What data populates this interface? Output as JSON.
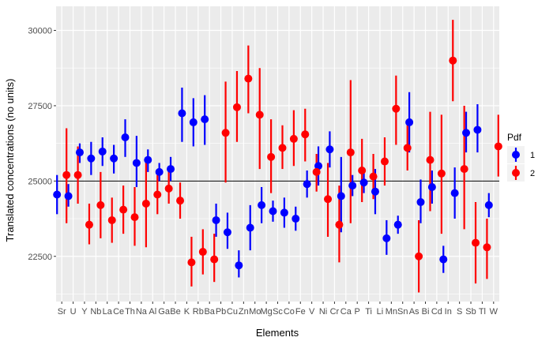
{
  "chart_data": {
    "type": "scatter",
    "xlabel": "Elements",
    "ylabel": "Translated concentrations (no units)",
    "ylim": [
      21000,
      30800
    ],
    "yticks": [
      22500,
      25000,
      27500,
      30000
    ],
    "reference_line": 25000,
    "grid": true,
    "legend_placement": "right",
    "legend_title": "Pdf",
    "categories": [
      "Sr",
      "U",
      "Y",
      "Nb",
      "La",
      "Ce",
      "Th",
      "Na",
      "Al",
      "Ga",
      "Be",
      "K",
      "Rb",
      "Ba",
      "Pb",
      "Cu",
      "Zn",
      "Mo",
      "Mg",
      "Sc",
      "Co",
      "Fe",
      "V",
      "Ni",
      "Cr",
      "Ca",
      "P",
      "Ti",
      "Li",
      "Mn",
      "Sn",
      "As",
      "Bi",
      "Cd",
      "In",
      "S",
      "Sb",
      "Tl",
      "W"
    ],
    "series": [
      {
        "name": "1",
        "color": "#0000ff",
        "points": [
          {
            "x": "Sr",
            "y": 24550,
            "low": 23900,
            "high": 25200
          },
          {
            "x": "U",
            "y": 24500,
            "low": 24150,
            "high": 24900
          },
          {
            "x": "Y",
            "y": 25950,
            "low": 25600,
            "high": 26250
          },
          {
            "x": "Nb",
            "y": 25750,
            "low": 25200,
            "high": 26300
          },
          {
            "x": "La",
            "y": 25980,
            "low": 25500,
            "high": 26450
          },
          {
            "x": "Ce",
            "y": 25750,
            "low": 25250,
            "high": 26200
          },
          {
            "x": "Th",
            "y": 26450,
            "low": 25800,
            "high": 27050
          },
          {
            "x": "Na",
            "y": 25600,
            "low": 24800,
            "high": 26500
          },
          {
            "x": "Al",
            "y": 25700,
            "low": 25300,
            "high": 26050
          },
          {
            "x": "Ga",
            "y": 25300,
            "low": 25000,
            "high": 25600
          },
          {
            "x": "Be",
            "y": 25400,
            "low": 25000,
            "high": 25800
          },
          {
            "x": "K",
            "y": 27250,
            "low": 26300,
            "high": 28100
          },
          {
            "x": "Rb",
            "y": 26950,
            "low": 26150,
            "high": 27750
          },
          {
            "x": "Ba",
            "y": 27050,
            "low": 26200,
            "high": 27850
          },
          {
            "x": "Pb",
            "y": 23700,
            "low": 23150,
            "high": 24250
          },
          {
            "x": "Cu",
            "y": 23300,
            "low": 22750,
            "high": 23950
          },
          {
            "x": "Zn",
            "y": 22200,
            "low": 21800,
            "high": 22700
          },
          {
            "x": "Mo",
            "y": 23450,
            "low": 22700,
            "high": 24200
          },
          {
            "x": "Mg",
            "y": 24200,
            "low": 23600,
            "high": 24800
          },
          {
            "x": "Sc",
            "y": 24000,
            "low": 23650,
            "high": 24350
          },
          {
            "x": "Co",
            "y": 23950,
            "low": 23450,
            "high": 24450
          },
          {
            "x": "Fe",
            "y": 23750,
            "low": 23350,
            "high": 24150
          },
          {
            "x": "V",
            "y": 24900,
            "low": 24450,
            "high": 25350
          },
          {
            "x": "Ni",
            "y": 25500,
            "low": 24850,
            "high": 26150
          },
          {
            "x": "Cr",
            "y": 26050,
            "low": 25450,
            "high": 26650
          },
          {
            "x": "Ca",
            "y": 24500,
            "low": 23300,
            "high": 25800
          },
          {
            "x": "P",
            "y": 24850,
            "low": 24500,
            "high": 25200
          },
          {
            "x": "Ti",
            "y": 24950,
            "low": 24600,
            "high": 25300
          },
          {
            "x": "Li",
            "y": 24650,
            "low": 23900,
            "high": 25400
          },
          {
            "x": "Mn",
            "y": 23100,
            "low": 22550,
            "high": 23700
          },
          {
            "x": "Sn",
            "y": 23550,
            "low": 23250,
            "high": 23850
          },
          {
            "x": "As",
            "y": 26950,
            "low": 25950,
            "high": 27950
          },
          {
            "x": "Bi",
            "y": 24300,
            "low": 23600,
            "high": 25050
          },
          {
            "x": "Cd",
            "y": 24800,
            "low": 24250,
            "high": 25350
          },
          {
            "x": "In",
            "y": 22400,
            "low": 21950,
            "high": 22850
          },
          {
            "x": "S",
            "y": 24600,
            "low": 23750,
            "high": 25450
          },
          {
            "x": "Sb",
            "y": 26600,
            "low": 25950,
            "high": 27300
          },
          {
            "x": "Tl",
            "y": 26700,
            "low": 25950,
            "high": 27550
          },
          {
            "x": "W",
            "y": 24200,
            "low": 23800,
            "high": 24600
          }
        ]
      },
      {
        "name": "2",
        "color": "#ff0000",
        "points": [
          {
            "x": "Sr",
            "y": 25200,
            "low": 23600,
            "high": 26750
          },
          {
            "x": "U",
            "y": 25200,
            "low": 24250,
            "high": 26150
          },
          {
            "x": "Y",
            "y": 23550,
            "low": 22900,
            "high": 24250
          },
          {
            "x": "Nb",
            "y": 24200,
            "low": 23100,
            "high": 25300
          },
          {
            "x": "La",
            "y": 23700,
            "low": 22950,
            "high": 24450
          },
          {
            "x": "Ce",
            "y": 24050,
            "low": 23250,
            "high": 24850
          },
          {
            "x": "Th",
            "y": 23800,
            "low": 22850,
            "high": 24800
          },
          {
            "x": "Na",
            "y": 24250,
            "low": 22800,
            "high": 25700
          },
          {
            "x": "Al",
            "y": 24550,
            "low": 23900,
            "high": 25200
          },
          {
            "x": "Ga",
            "y": 24750,
            "low": 24250,
            "high": 25300
          },
          {
            "x": "Be",
            "y": 24350,
            "low": 23750,
            "high": 24950
          },
          {
            "x": "K",
            "y": 22300,
            "low": 21500,
            "high": 23150
          },
          {
            "x": "Rb",
            "y": 22650,
            "low": 21900,
            "high": 23400
          },
          {
            "x": "Ba",
            "y": 22400,
            "low": 21650,
            "high": 23250
          },
          {
            "x": "Pb",
            "y": 26600,
            "low": 24950,
            "high": 28300
          },
          {
            "x": "Cu",
            "y": 27450,
            "low": 26300,
            "high": 28650
          },
          {
            "x": "Zn",
            "y": 28400,
            "low": 27250,
            "high": 29500
          },
          {
            "x": "Mo",
            "y": 27200,
            "low": 25400,
            "high": 28750
          },
          {
            "x": "Mg",
            "y": 25800,
            "low": 24600,
            "high": 27050
          },
          {
            "x": "Sc",
            "y": 26100,
            "low": 25400,
            "high": 26850
          },
          {
            "x": "Co",
            "y": 26400,
            "low": 25500,
            "high": 27350
          },
          {
            "x": "Fe",
            "y": 26550,
            "low": 25650,
            "high": 27400
          },
          {
            "x": "V",
            "y": 25300,
            "low": 24650,
            "high": 25900
          },
          {
            "x": "Ni",
            "y": 24400,
            "low": 23150,
            "high": 25600
          },
          {
            "x": "Cr",
            "y": 23550,
            "low": 22300,
            "high": 24850
          },
          {
            "x": "Ca",
            "y": 25950,
            "low": 23600,
            "high": 28350
          },
          {
            "x": "P",
            "y": 25350,
            "low": 24300,
            "high": 26400
          },
          {
            "x": "Ti",
            "y": 25150,
            "low": 24400,
            "high": 25900
          },
          {
            "x": "Li",
            "y": 25650,
            "low": 24850,
            "high": 26450
          },
          {
            "x": "Mn",
            "y": 27400,
            "low": 26200,
            "high": 28500
          },
          {
            "x": "Sn",
            "y": 26100,
            "low": 25350,
            "high": 26850
          },
          {
            "x": "As",
            "y": 22500,
            "low": 21300,
            "high": 23700
          },
          {
            "x": "Bi",
            "y": 25700,
            "low": 24000,
            "high": 27300
          },
          {
            "x": "Cd",
            "y": 25250,
            "low": 23250,
            "high": 27200
          },
          {
            "x": "In",
            "y": 29000,
            "low": 27650,
            "high": 30350
          },
          {
            "x": "S",
            "y": 25400,
            "low": 23400,
            "high": 27500
          },
          {
            "x": "Sb",
            "y": 22950,
            "low": 21600,
            "high": 24300
          },
          {
            "x": "Tl",
            "y": 22800,
            "low": 21750,
            "high": 23750
          },
          {
            "x": "W",
            "y": 26150,
            "low": 25150,
            "high": 27200
          }
        ]
      }
    ]
  }
}
